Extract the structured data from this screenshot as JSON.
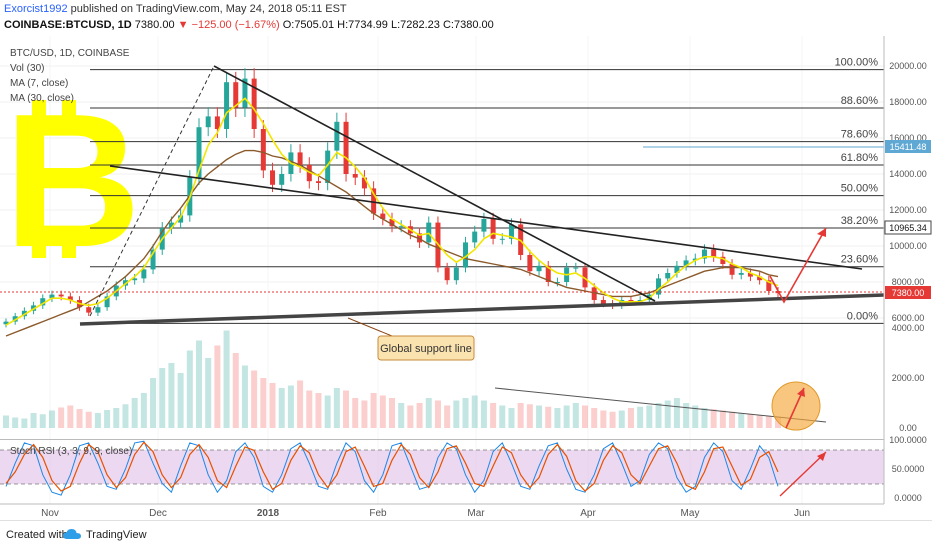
{
  "header": {
    "author": "Exorcist1992",
    "published_text": "published on TradingView.com, May 24, 2018 05:11 EST",
    "symbol": "COINBASE:BTCUSD, 1D",
    "last": "7380.00",
    "change": "▼ −125.00 (−1.67%)",
    "open": "O:7505.01",
    "high": "H:7734.99",
    "low": "L:7282.23",
    "close": "C:7380.00"
  },
  "legend": {
    "title": "BTC/USD, 1D, COINBASE",
    "vol": "Vol (30)",
    "ma7": "MA (7, close)",
    "ma30": "MA (30, close)",
    "stoch": "Stoch RSI (3, 3, 9, 9, close)"
  },
  "annotation": {
    "support": "Global support line"
  },
  "footer": {
    "created_with": "Created with",
    "brand": "TradingView"
  },
  "colors": {
    "up": "#26a69a",
    "down": "#ef5350",
    "ma7": "#f2e600",
    "ma30": "#8b5a2b",
    "bitcoin": "#ffff00",
    "arrow": "#e53935",
    "price_badge": "#e53935",
    "level_badge": "#5fa8d3",
    "stoch_k": "#1e88e5",
    "stoch_d": "#e65100",
    "stoch_band": "#e1bee7"
  },
  "chart_data": {
    "type": "candlestick",
    "title": "BTC/USD, 1D, COINBASE",
    "x_labels": [
      "Nov",
      "Dec",
      "2018",
      "Feb",
      "Mar",
      "Apr",
      "May",
      "Jun"
    ],
    "price_axis_ticks": [
      "20000.00",
      "18000.00",
      "16000.00",
      "14000.00",
      "12000.00",
      "10000.00",
      "8000.00",
      "6000.00"
    ],
    "volume_axis_ticks": [
      "4000.00",
      "2000.00",
      "0.00"
    ],
    "stoch_axis_ticks": [
      "100.0000",
      "50.0000",
      "0.0000"
    ],
    "price_badge": "7380.00",
    "level_badge": "15411.48",
    "resistance_badge": "10965.34",
    "fib_levels": [
      {
        "label": "100.00%",
        "price": 19800
      },
      {
        "label": "88.60%",
        "price": 17670
      },
      {
        "label": "78.60%",
        "price": 15800
      },
      {
        "label": "61.80%",
        "price": 14500
      },
      {
        "label": "50.00%",
        "price": 12800
      },
      {
        "label": "38.20%",
        "price": 11000
      },
      {
        "label": "23.60%",
        "price": 8850
      },
      {
        "label": "0.00%",
        "price": 5700
      }
    ],
    "close_series": [
      5800,
      6100,
      6400,
      6700,
      7100,
      7300,
      7200,
      7000,
      6600,
      6300,
      6600,
      7200,
      7800,
      8100,
      8200,
      8700,
      9800,
      11000,
      11300,
      11700,
      13800,
      16600,
      17200,
      16500,
      19100,
      17700,
      19300,
      16500,
      14200,
      13400,
      14000,
      15200,
      14500,
      13600,
      13500,
      15300,
      16900,
      14000,
      13800,
      13200,
      11800,
      11500,
      11100,
      11100,
      10700,
      10200,
      11300,
      8800,
      8100,
      8800,
      10200,
      10800,
      11500,
      10400,
      10400,
      11200,
      9500,
      8600,
      8900,
      8000,
      8000,
      8800,
      8800,
      7700,
      7000,
      6800,
      6700,
      7000,
      6900,
      7000,
      7300,
      8200,
      8500,
      8900,
      9200,
      9300,
      9800,
      9400,
      9000,
      8400,
      8500,
      8300,
      8100,
      7500,
      7380
    ],
    "ma7_series": [
      5600,
      5900,
      6200,
      6500,
      6800,
      7100,
      7100,
      7000,
      6800,
      6700,
      6800,
      7100,
      7500,
      7900,
      8300,
      8800,
      9600,
      10400,
      11000,
      11600,
      12700,
      14200,
      15600,
      16300,
      17400,
      17800,
      18200,
      17600,
      16800,
      15900,
      15100,
      14600,
      14400,
      14100,
      13900,
      14500,
      15200,
      14900,
      14400,
      13800,
      12900,
      12100,
      11500,
      11200,
      10900,
      10600,
      10700,
      10100,
      9500,
      9100,
      9400,
      9800,
      10400,
      10700,
      10600,
      10500,
      10300,
      9700,
      9200,
      8800,
      8500,
      8400,
      8500,
      8200,
      7800,
      7400,
      7100,
      6900,
      6900,
      6900,
      7100,
      7600,
      8000,
      8500,
      8900,
      9200,
      9400,
      9400,
      9300,
      9000,
      8800,
      8500,
      8300,
      8000,
      7800
    ],
    "ma30_series": [
      5000,
      5200,
      5400,
      5600,
      5800,
      6000,
      6200,
      6400,
      6600,
      6900,
      7200,
      7500,
      7900,
      8300,
      8800,
      9300,
      10000,
      10800,
      11500,
      12100,
      12800,
      13500,
      14000,
      14400,
      14800,
      15100,
      15300,
      15300,
      15200,
      15000,
      14900,
      14700,
      14500,
      14200,
      13900,
      13600,
      13300,
      13000,
      12600,
      12200,
      11800,
      11500,
      11200,
      10900,
      10600,
      10400,
      10100,
      9900,
      9700,
      9500,
      9300,
      9200,
      9100,
      9000,
      8900,
      8800,
      8700,
      8500,
      8300,
      8100,
      7900,
      7700,
      7600,
      7500,
      7400,
      7300,
      7200,
      7200,
      7200,
      7300,
      7400,
      7600,
      7800,
      8000,
      8200,
      8400,
      8600,
      8700,
      8800,
      8800,
      8800,
      8700,
      8600,
      8400,
      8300
    ],
    "volume_series": [
      500,
      420,
      380,
      600,
      550,
      700,
      820,
      900,
      760,
      650,
      600,
      720,
      800,
      950,
      1200,
      1400,
      2000,
      2400,
      2600,
      2200,
      3100,
      3500,
      2800,
      3300,
      3900,
      3000,
      2500,
      2300,
      2000,
      1800,
      1600,
      1700,
      1900,
      1500,
      1400,
      1300,
      1600,
      1500,
      1200,
      1100,
      1400,
      1300,
      1200,
      1000,
      900,
      1000,
      1200,
      1100,
      900,
      1100,
      1200,
      1300,
      1100,
      1000,
      900,
      800,
      1000,
      950,
      900,
      850,
      800,
      900,
      1000,
      900,
      800,
      700,
      650,
      700,
      800,
      850,
      900,
      1000,
      1100,
      1200,
      1000,
      900,
      800,
      750,
      700,
      650,
      600,
      550,
      500,
      480,
      450
    ],
    "stoch_k_series": [
      20,
      60,
      95,
      90,
      40,
      10,
      5,
      40,
      90,
      95,
      60,
      20,
      15,
      50,
      95,
      98,
      60,
      25,
      10,
      55,
      95,
      90,
      40,
      10,
      30,
      80,
      95,
      70,
      20,
      10,
      40,
      85,
      95,
      60,
      20,
      15,
      60,
      95,
      80,
      30,
      10,
      40,
      90,
      95,
      55,
      15,
      20,
      70,
      95,
      85,
      40,
      10,
      30,
      80,
      95,
      60,
      20,
      15,
      55,
      90,
      95,
      50,
      15,
      10,
      40,
      85,
      95,
      60,
      20,
      30,
      75,
      95,
      85,
      35,
      10,
      20,
      70,
      95,
      80,
      30,
      15,
      50,
      90,
      70,
      20
    ],
    "stoch_d_series": [
      25,
      45,
      75,
      92,
      70,
      30,
      12,
      20,
      60,
      92,
      80,
      40,
      18,
      35,
      75,
      96,
      80,
      40,
      18,
      35,
      75,
      92,
      70,
      30,
      18,
      55,
      88,
      82,
      45,
      15,
      25,
      65,
      90,
      78,
      40,
      18,
      40,
      80,
      88,
      55,
      20,
      25,
      65,
      92,
      75,
      35,
      18,
      45,
      85,
      90,
      60,
      25,
      20,
      55,
      88,
      78,
      40,
      18,
      35,
      75,
      92,
      72,
      30,
      12,
      25,
      65,
      90,
      78,
      40,
      25,
      55,
      85,
      90,
      60,
      22,
      15,
      45,
      85,
      88,
      55,
      22,
      32,
      70,
      80,
      45
    ]
  }
}
